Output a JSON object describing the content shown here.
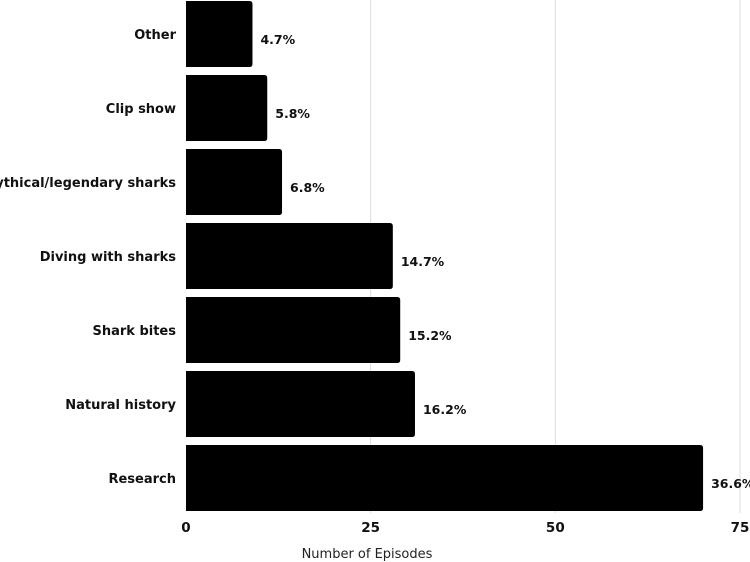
{
  "chart_data": {
    "type": "bar",
    "orientation": "horizontal",
    "categories": [
      "Other",
      "Clip show",
      "Mythical/legendary sharks",
      "Diving with sharks",
      "Shark bites",
      "Natural history",
      "Research"
    ],
    "values": [
      9,
      11,
      13,
      28,
      29,
      31,
      70
    ],
    "value_labels": [
      "4.7%",
      "5.8%",
      "6.8%",
      "14.7%",
      "15.2%",
      "16.2%",
      "36.6%"
    ],
    "xlabel": "Number of Episodes",
    "ylabel": "",
    "xlim": [
      0,
      75
    ],
    "xticks": [
      0,
      25,
      50,
      75
    ],
    "xtick_labels": [
      "0",
      "25",
      "50",
      "75"
    ],
    "grid": "vertical",
    "legend": "none",
    "colors": {
      "bar": "#000000",
      "grid": "#dddddd",
      "text": "#111111",
      "background": "#ffffff"
    }
  }
}
